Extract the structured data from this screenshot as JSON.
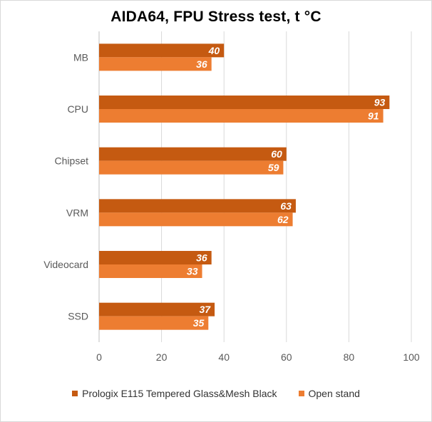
{
  "chart_data": {
    "type": "bar",
    "orientation": "horizontal",
    "title": "AIDA64, FPU Stress test, t °C",
    "categories": [
      "MB",
      "CPU",
      "Chipset",
      "VRM",
      "Videocard",
      "SSD"
    ],
    "series": [
      {
        "name": "Prologix E115 Tempered Glass&Mesh Black",
        "color": "#c55a11",
        "values": [
          40,
          93,
          60,
          63,
          36,
          37
        ]
      },
      {
        "name": "Open stand",
        "color": "#ed7d31",
        "values": [
          36,
          91,
          59,
          62,
          33,
          35
        ]
      }
    ],
    "xlim": [
      0,
      100
    ],
    "xticks": [
      "0",
      "20",
      "40",
      "60",
      "80",
      "100"
    ],
    "grid": true,
    "legend": "bottom",
    "data_labels": true
  }
}
